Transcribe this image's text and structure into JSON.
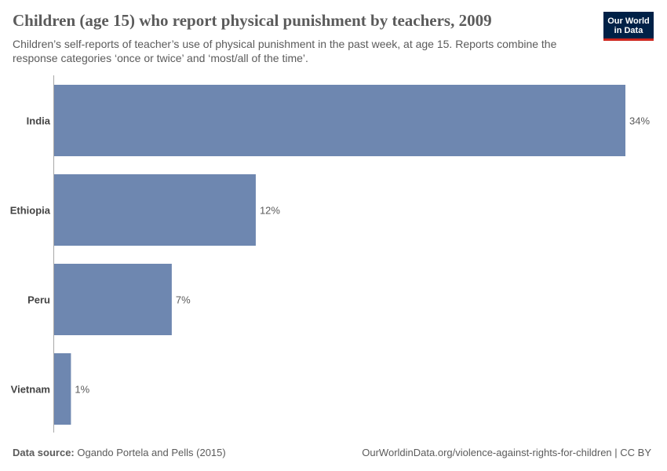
{
  "header": {
    "title": "Children (age 15) who report physical punishment by teachers, 2009",
    "subtitle": "Children’s self-reports of teacher’s use of physical punishment in the past week, at age 15. Reports combine the response categories ‘once or twice’ and ‘most/all of the time’.",
    "logo_line1": "Our World",
    "logo_line2": "in Data"
  },
  "colors": {
    "bar": "#6e87b0",
    "axis": "#a8a8a8",
    "label": "#444444",
    "logo_bg": "#002147",
    "logo_accent": "#ce261e"
  },
  "chart_data": {
    "type": "bar",
    "orientation": "horizontal",
    "categories": [
      "India",
      "Ethiopia",
      "Peru",
      "Vietnam"
    ],
    "values": [
      34,
      12,
      7,
      1
    ],
    "value_labels": [
      "34%",
      "12%",
      "7%",
      "1%"
    ],
    "unit": "%",
    "xlim": [
      0,
      34
    ],
    "grid": false,
    "legend": "none"
  },
  "footer": {
    "source_label": "Data source:",
    "source_text": "Ogando Portela and Pells (2015)",
    "credit": "OurWorldinData.org/violence-against-rights-for-children | CC BY"
  }
}
